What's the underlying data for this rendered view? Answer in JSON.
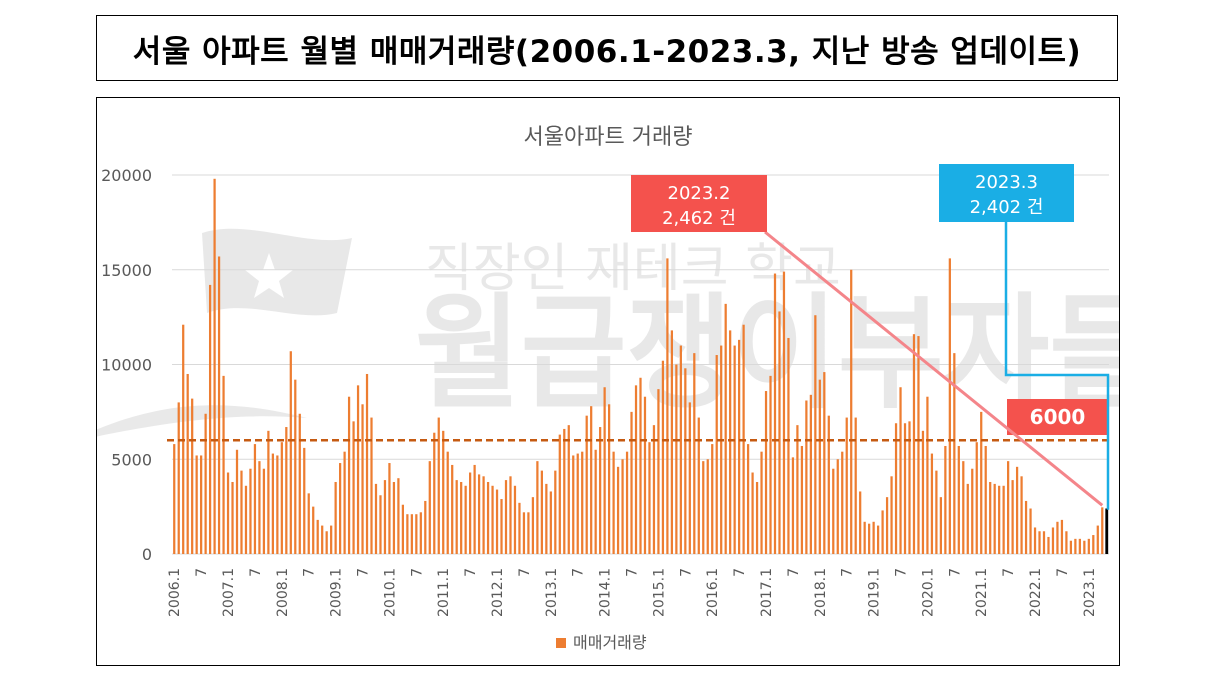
{
  "header": {
    "title": "서울 아파트 월별 매매거래량(2006.1-2023.3, 지난 방송 업데이트)"
  },
  "chart_data": {
    "type": "bar",
    "title": "서울아파트 거래량",
    "xlabel": "",
    "ylabel": "",
    "ylim": [
      0,
      20000
    ],
    "y_ticks": [
      "0",
      "5000",
      "10000",
      "15000",
      "20000"
    ],
    "grid": true,
    "legend_position": "bottom",
    "series": [
      {
        "name": "매매거래량",
        "color": "#ed7d31",
        "values": [
          5800,
          8000,
          12100,
          9500,
          8200,
          5200,
          5200,
          7400,
          14200,
          19800,
          15700,
          9400,
          4300,
          3800,
          5500,
          4400,
          3600,
          4500,
          5800,
          4900,
          4500,
          6500,
          5300,
          5200,
          5900,
          6700,
          10700,
          9200,
          7400,
          5600,
          3200,
          2500,
          1800,
          1500,
          1200,
          1500,
          3800,
          4800,
          5400,
          8300,
          7000,
          8900,
          7900,
          9500,
          7200,
          3700,
          3100,
          3900,
          4800,
          3800,
          4000,
          2600,
          2100,
          2100,
          2100,
          2200,
          2800,
          4900,
          6400,
          7200,
          6500,
          5400,
          4700,
          3900,
          3800,
          3600,
          4300,
          4700,
          4200,
          4100,
          3800,
          3600,
          3400,
          2900,
          3900,
          4100,
          3600,
          2700,
          2200,
          2200,
          3000,
          4900,
          4400,
          3700,
          3300,
          4400,
          6300,
          6600,
          6800,
          5200,
          5300,
          5400,
          7300,
          7800,
          5500,
          6700,
          8800,
          7900,
          5400,
          4600,
          5000,
          5400,
          7500,
          8900,
          9300,
          8300,
          5900,
          6800,
          8700,
          10200,
          15600,
          11800,
          10000,
          11000,
          9800,
          8000,
          10600,
          7200,
          4900,
          5000,
          5800,
          10500,
          11000,
          13200,
          11800,
          11000,
          11300,
          12100,
          5800,
          4300,
          3800,
          5400,
          8600,
          9400,
          14800,
          12800,
          14900,
          11400,
          5100,
          6800,
          5700,
          8100,
          8400,
          12600,
          9200,
          9600,
          7300,
          4500,
          5000,
          5400,
          7200,
          15000,
          7200,
          3300,
          1700,
          1600,
          1700,
          1500,
          2300,
          3000,
          4100,
          6900,
          8800,
          6900,
          7000,
          11600,
          11500,
          6500,
          8300,
          5300,
          4400,
          3000,
          5700,
          15600,
          10600,
          5700,
          4900,
          3700,
          4500,
          5900,
          7500,
          5700,
          3800,
          3700,
          3600,
          3600,
          4900,
          3900,
          4600,
          4100,
          2800,
          2400,
          1400,
          1200,
          1200,
          900,
          1400,
          1700,
          1800,
          1200,
          700,
          800,
          800,
          700,
          800,
          1000,
          1500,
          2462,
          2402
        ]
      }
    ],
    "x_tick_labels": [
      "2006.1",
      "7",
      "2007.1",
      "7",
      "2008.1",
      "7",
      "2009.1",
      "7",
      "2010.1",
      "7",
      "2011.1",
      "7",
      "2012.1",
      "7",
      "2013.1",
      "7",
      "2014.1",
      "7",
      "2015.1",
      "7",
      "2016.1",
      "7",
      "2017.1",
      "7",
      "2018.1",
      "7",
      "2019.1",
      "7",
      "2020.1",
      "7",
      "2021.1",
      "7",
      "2022.1",
      "7",
      "2023.1"
    ],
    "reference_line": {
      "value": 6000,
      "label": "6000",
      "color": "#c55a11"
    },
    "annotations": [
      {
        "line1": "2023.2",
        "line2": "2,462 건",
        "color": "#f4524d"
      },
      {
        "line1": "2023.3",
        "line2": "2,402 건",
        "color": "#1aaee5"
      }
    ]
  },
  "watermark": {
    "line1": "직장인 재테크 학교",
    "line2": "월급쟁이부자들"
  }
}
